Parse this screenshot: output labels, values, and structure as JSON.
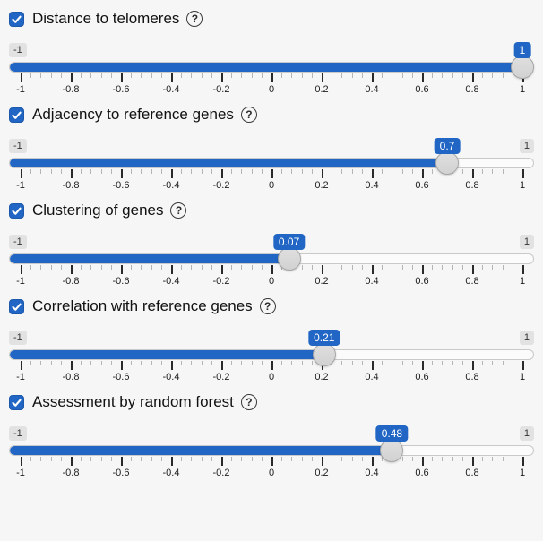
{
  "colors": {
    "accent_blue": "#2166c4",
    "track_unfilled": "#fbfbfb",
    "handle_gray": "#d7d7d7",
    "badge_gray": "#e2e2e2",
    "page_background": "#f6f6f6"
  },
  "axis": {
    "min": -1,
    "max": 1,
    "major_tick_labels": [
      "-1",
      "-0.8",
      "-0.6",
      "-0.4",
      "-0.2",
      "0",
      "0.2",
      "0.4",
      "0.6",
      "0.8",
      "1"
    ],
    "minor_ticks_per_interval": 4
  },
  "sliders": [
    {
      "label": "Distance to telomeres",
      "checked": true,
      "value": 1,
      "value_label": "1",
      "min_label": "-1",
      "max_label": "1",
      "help_glyph": "?"
    },
    {
      "label": "Adjacency to reference genes",
      "checked": true,
      "value": 0.7,
      "value_label": "0.7",
      "min_label": "-1",
      "max_label": "1",
      "help_glyph": "?"
    },
    {
      "label": "Clustering of genes",
      "checked": true,
      "value": 0.07,
      "value_label": "0.07",
      "min_label": "-1",
      "max_label": "1",
      "help_glyph": "?"
    },
    {
      "label": "Correlation with reference genes",
      "checked": true,
      "value": 0.21,
      "value_label": "0.21",
      "min_label": "-1",
      "max_label": "1",
      "help_glyph": "?"
    },
    {
      "label": "Assessment by random forest",
      "checked": true,
      "value": 0.48,
      "value_label": "0.48",
      "min_label": "-1",
      "max_label": "1",
      "help_glyph": "?"
    }
  ]
}
